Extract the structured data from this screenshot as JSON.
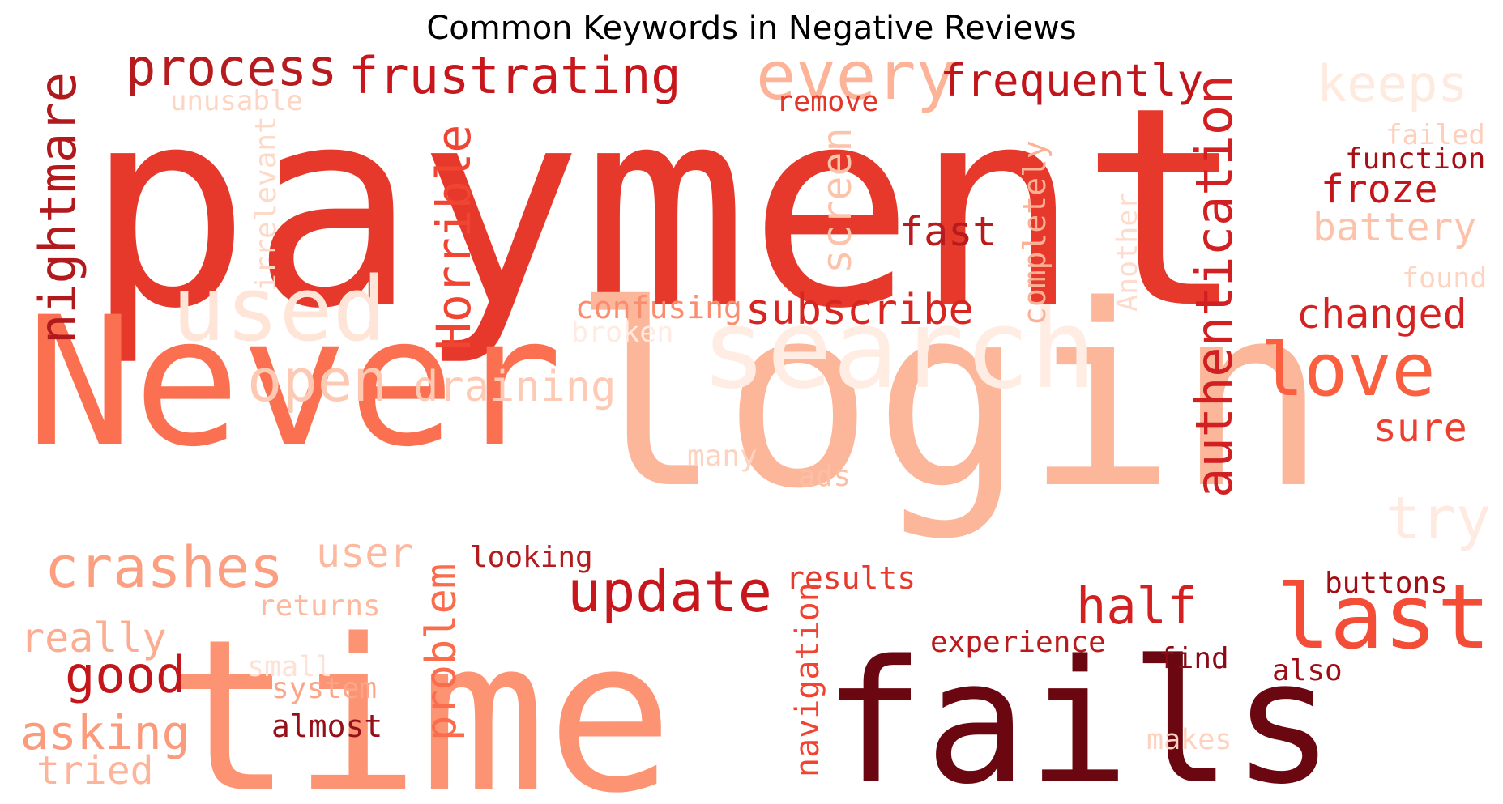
{
  "title": "Common Keywords in Negative Reviews",
  "words": [
    {
      "text": "payment",
      "color": "#e6392b"
    },
    {
      "text": "login",
      "color": "#fcb79b"
    },
    {
      "text": "Never",
      "color": "#fb7050"
    },
    {
      "text": "time",
      "color": "#fc9373"
    },
    {
      "text": "fails",
      "color": "#6b0711"
    },
    {
      "text": "search",
      "color": "#ffede4"
    },
    {
      "text": "used",
      "color": "#fee5d8"
    },
    {
      "text": "process",
      "color": "#b61b1e"
    },
    {
      "text": "frustrating",
      "color": "#c8171c"
    },
    {
      "text": "every",
      "color": "#fcb397"
    },
    {
      "text": "frequently",
      "color": "#c0161b"
    },
    {
      "text": "keeps",
      "color": "#feeadf"
    },
    {
      "text": "nightmare",
      "color": "#b11a1d"
    },
    {
      "text": "unusable",
      "color": "#fdd5c3"
    },
    {
      "text": "remove",
      "color": "#e2362a"
    },
    {
      "text": "irrelevant",
      "color": "#fdd9c7"
    },
    {
      "text": "Horrible",
      "color": "#ef4532"
    },
    {
      "text": "screen",
      "color": "#fcc3ab"
    },
    {
      "text": "completely",
      "color": "#fcb196"
    },
    {
      "text": "Another",
      "color": "#fedccd"
    },
    {
      "text": "authentication",
      "color": "#d11f22"
    },
    {
      "text": "failed",
      "color": "#fdd0bc"
    },
    {
      "text": "function",
      "color": "#a50f15"
    },
    {
      "text": "froze",
      "color": "#c4151b"
    },
    {
      "text": "battery",
      "color": "#fcc2aa"
    },
    {
      "text": "fast",
      "color": "#b61b1e"
    },
    {
      "text": "found",
      "color": "#fdd4c2"
    },
    {
      "text": "subscribe",
      "color": "#d9251f"
    },
    {
      "text": "confusing",
      "color": "#fb8d6e"
    },
    {
      "text": "broken",
      "color": "#feece3"
    },
    {
      "text": "changed",
      "color": "#d42121"
    },
    {
      "text": "love",
      "color": "#fa6040"
    },
    {
      "text": "open",
      "color": "#fdc9b3"
    },
    {
      "text": "draining",
      "color": "#fdcab5"
    },
    {
      "text": "sure",
      "color": "#ec3f2f"
    },
    {
      "text": "many",
      "color": "#fdd3c0"
    },
    {
      "text": "ads",
      "color": "#fcbfa5"
    },
    {
      "text": "try",
      "color": "#feeae0"
    },
    {
      "text": "crashes",
      "color": "#fc9e80"
    },
    {
      "text": "user",
      "color": "#fcb99f"
    },
    {
      "text": "looking",
      "color": "#b31b1d"
    },
    {
      "text": "update",
      "color": "#c8171c"
    },
    {
      "text": "results",
      "color": "#e53a2c"
    },
    {
      "text": "half",
      "color": "#d32020"
    },
    {
      "text": "last",
      "color": "#f44d37"
    },
    {
      "text": "buttons",
      "color": "#a10e14"
    },
    {
      "text": "returns",
      "color": "#fcb99f"
    },
    {
      "text": "really",
      "color": "#fcad91"
    },
    {
      "text": "problem",
      "color": "#fb6c4c"
    },
    {
      "text": "navigation",
      "color": "#f14330"
    },
    {
      "text": "experience",
      "color": "#bb1a1c"
    },
    {
      "text": "find",
      "color": "#8a0b17"
    },
    {
      "text": "also",
      "color": "#9c0d14"
    },
    {
      "text": "good",
      "color": "#c3161b"
    },
    {
      "text": "small",
      "color": "#fde2d5"
    },
    {
      "text": "system",
      "color": "#fca588"
    },
    {
      "text": "asking",
      "color": "#fc9b7c"
    },
    {
      "text": "almost",
      "color": "#96101a"
    },
    {
      "text": "tried",
      "color": "#fcb59a"
    },
    {
      "text": "makes",
      "color": "#fdd1bd"
    }
  ]
}
